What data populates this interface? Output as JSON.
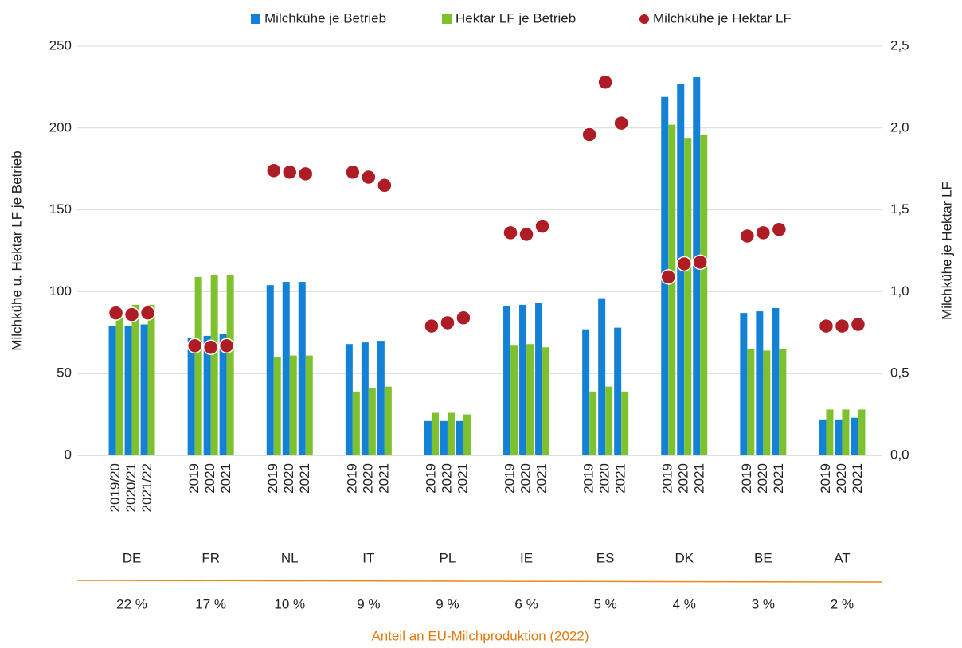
{
  "chart_data": {
    "type": "bar",
    "y_label": "Milchkühe u. Hektar LF je Betrieb",
    "y2_label": "Milchkühe  je Hektar LF",
    "groups": [
      "DE",
      "FR",
      "NL",
      "IT",
      "PL",
      "IE",
      "ES",
      "DK",
      "BE",
      "AT"
    ],
    "shares": [
      "22 %",
      "17 %",
      "10 %",
      "9 %",
      "9 %",
      "6 %",
      "5 %",
      "4 %",
      "3 %",
      "2 %"
    ],
    "shares_label": "Anteil an EU-Milchproduktion (2022)",
    "categories": [
      "2019/20",
      "2020/21",
      "2021/22",
      "2019",
      "2020",
      "2021",
      "2019",
      "2020",
      "2021",
      "2019",
      "2020",
      "2021",
      "2019",
      "2020",
      "2021",
      "2019",
      "2020",
      "2021",
      "2019",
      "2020",
      "2021",
      "2019",
      "2020",
      "2021",
      "2019",
      "2020",
      "2021",
      "2019",
      "2020",
      "2021"
    ],
    "series": [
      {
        "name": "Milchkühe je Betrieb",
        "color": "#1281d6",
        "type": "bar",
        "values": [
          79,
          79,
          80,
          72,
          73,
          74,
          104,
          106,
          106,
          68,
          69,
          70,
          21,
          21,
          21,
          91,
          92,
          93,
          77,
          96,
          78,
          219,
          227,
          231,
          87,
          88,
          90,
          22,
          22,
          23
        ]
      },
      {
        "name": "Hektar LF je Betrieb",
        "color": "#7dc22e",
        "type": "bar",
        "values": [
          84,
          92,
          92,
          109,
          110,
          110,
          60,
          61,
          61,
          39,
          41,
          42,
          26,
          26,
          25,
          67,
          68,
          66,
          39,
          42,
          39,
          202,
          194,
          196,
          65,
          64,
          65,
          28,
          28,
          28
        ]
      },
      {
        "name": "Milchkühe je Hektar LF",
        "color": "#ae1c25",
        "type": "scatter",
        "axis": "y2",
        "values": [
          0.87,
          0.86,
          0.87,
          0.67,
          0.66,
          0.67,
          1.74,
          1.73,
          1.72,
          1.73,
          1.7,
          1.65,
          0.79,
          0.81,
          0.84,
          1.36,
          1.35,
          1.4,
          1.96,
          2.28,
          2.03,
          1.09,
          1.17,
          1.18,
          1.34,
          1.36,
          1.38,
          0.79,
          0.79,
          0.8
        ]
      }
    ],
    "ylim": [
      0,
      250
    ],
    "yticks": [
      0,
      50,
      100,
      150,
      200,
      250
    ],
    "y2lim": [
      0,
      2.5
    ],
    "y2ticks": [
      {
        "value": 0,
        "label": "0,0"
      },
      {
        "value": 0.5,
        "label": "0,5"
      },
      {
        "value": 1,
        "label": "1,0"
      },
      {
        "value": 1.5,
        "label": "1,5"
      },
      {
        "value": 2,
        "label": "2,0"
      },
      {
        "value": 2.5,
        "label": "2,5"
      }
    ],
    "grid": true,
    "legend": "top"
  }
}
